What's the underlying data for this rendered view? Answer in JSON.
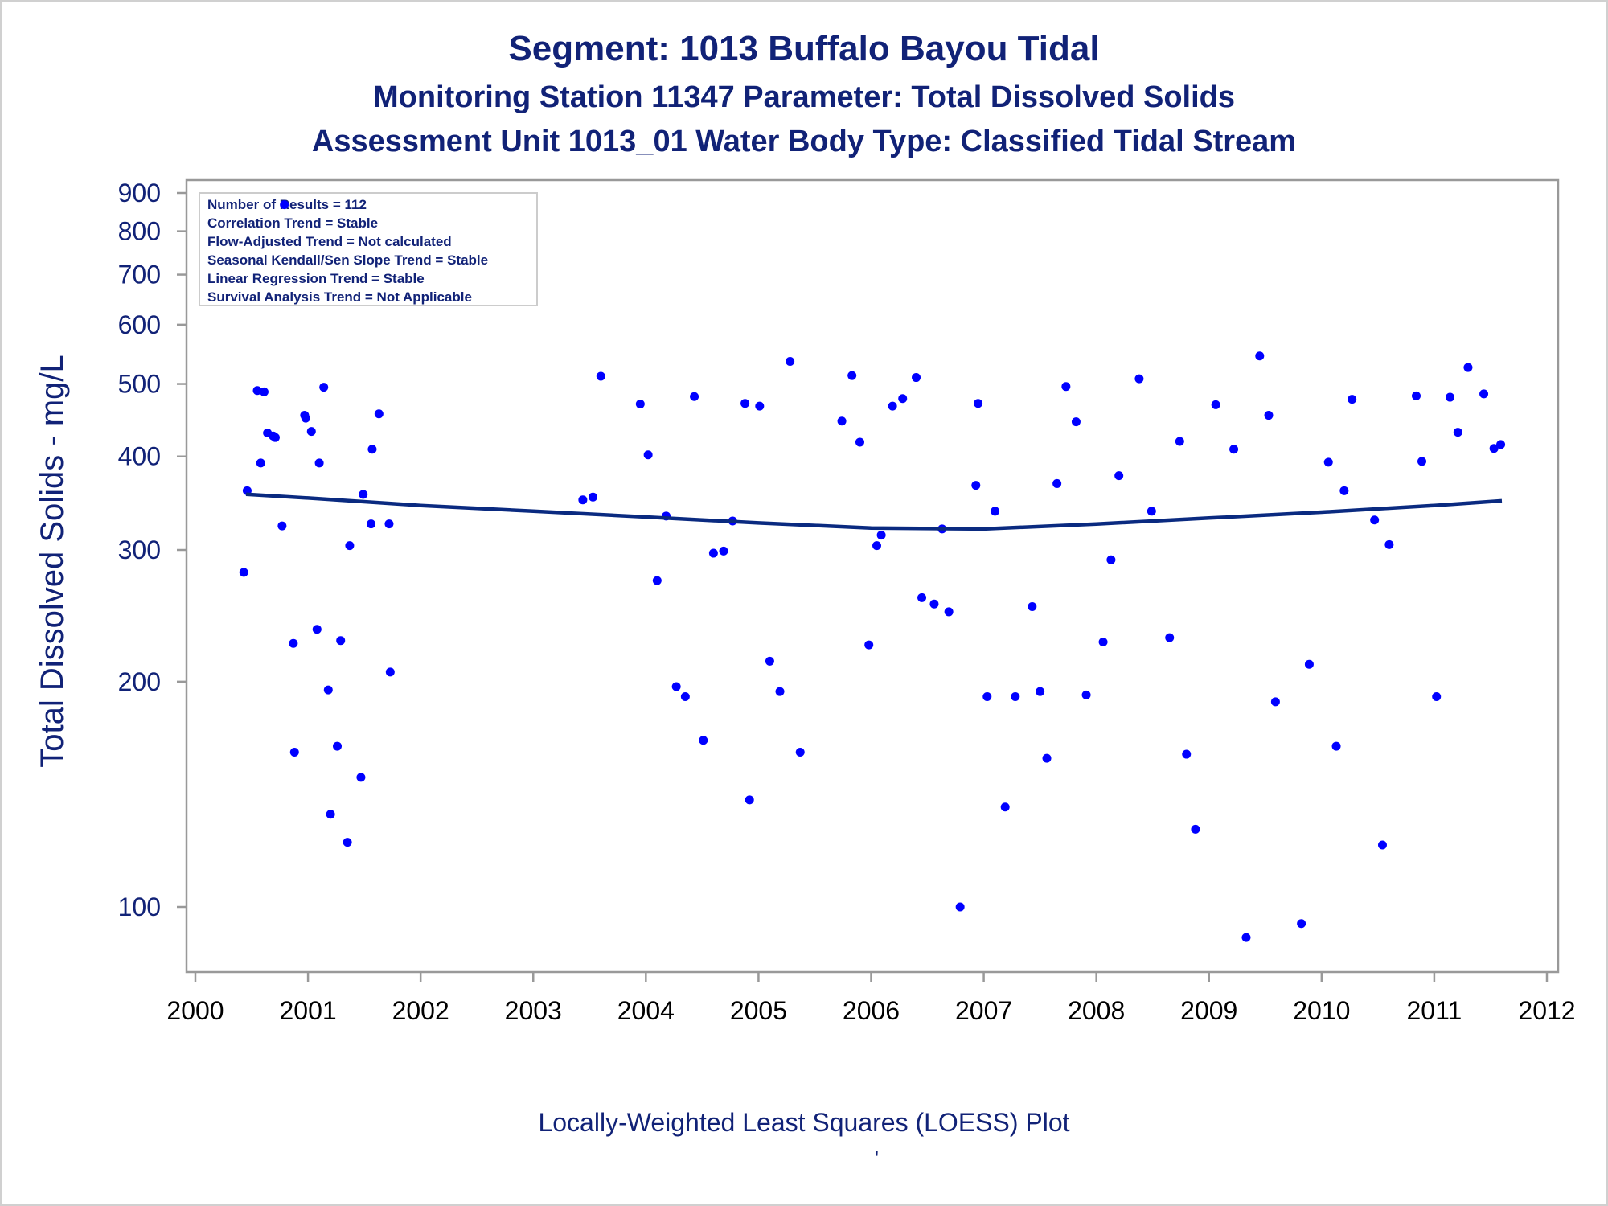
{
  "titles": {
    "line1": "Segment: 1013  Buffalo Bayou Tidal",
    "line2": "Monitoring Station 11347 Parameter: Total Dissolved Solids",
    "line3": "Assessment Unit 1013_01   Water Body Type: Classified Tidal Stream"
  },
  "footnote": "Locally-Weighted Least Squares (LOESS) Plot",
  "footnote_mark": "'",
  "colors": {
    "text": "#112277",
    "points": "#0000ff",
    "loess": "#0a2a80",
    "frame": "#999999"
  },
  "chart_data": {
    "type": "scatter",
    "ylabel": "Total Dissolved Solids - mg/L",
    "xlabel": "",
    "yscale": "log",
    "ylim": [
      80,
      900
    ],
    "xlim": [
      2000,
      2012
    ],
    "yticks": [
      100,
      200,
      300,
      400,
      500,
      600,
      700,
      800,
      900
    ],
    "xticks": [
      2000,
      2001,
      2002,
      2003,
      2004,
      2005,
      2006,
      2007,
      2008,
      2009,
      2010,
      2011,
      2012
    ],
    "stats_box": [
      "Number of Results = 112",
      "Correlation Trend = Stable",
      "Flow-Adjusted Trend = Not calculated",
      "Seasonal Kendall/Sen Slope Trend = Stable",
      "Linear Regression Trend = Stable",
      "Survival Analysis Trend = Not Applicable"
    ],
    "series": [
      {
        "kind": "points",
        "points": [
          [
            2000.43,
            280
          ],
          [
            2000.46,
            360
          ],
          [
            2000.55,
            490
          ],
          [
            2000.58,
            392
          ],
          [
            2000.61,
            488
          ],
          [
            2000.64,
            430
          ],
          [
            2000.69,
            426
          ],
          [
            2000.71,
            424
          ],
          [
            2000.77,
            323
          ],
          [
            2000.79,
            868
          ],
          [
            2000.87,
            225
          ],
          [
            2000.88,
            161
          ],
          [
            2000.97,
            454
          ],
          [
            2000.98,
            450
          ],
          [
            2001.03,
            432
          ],
          [
            2001.08,
            235
          ],
          [
            2001.1,
            392
          ],
          [
            2001.14,
            495
          ],
          [
            2001.18,
            195
          ],
          [
            2001.2,
            133
          ],
          [
            2001.26,
            164
          ],
          [
            2001.29,
            227
          ],
          [
            2001.35,
            122
          ],
          [
            2001.37,
            304
          ],
          [
            2001.47,
            149
          ],
          [
            2001.49,
            356
          ],
          [
            2001.56,
            325
          ],
          [
            2001.57,
            409
          ],
          [
            2001.63,
            456
          ],
          [
            2001.72,
            325
          ],
          [
            2001.73,
            206
          ],
          [
            2003.44,
            350
          ],
          [
            2003.53,
            353
          ],
          [
            2003.6,
            512
          ],
          [
            2003.95,
            470
          ],
          [
            2004.02,
            402
          ],
          [
            2004.1,
            273
          ],
          [
            2004.18,
            333
          ],
          [
            2004.27,
            197
          ],
          [
            2004.35,
            191
          ],
          [
            2004.43,
            481
          ],
          [
            2004.51,
            167
          ],
          [
            2004.6,
            297
          ],
          [
            2004.69,
            299
          ],
          [
            2004.77,
            328
          ],
          [
            2004.88,
            471
          ],
          [
            2004.92,
            139
          ],
          [
            2005.01,
            467
          ],
          [
            2005.1,
            213
          ],
          [
            2005.19,
            194
          ],
          [
            2005.28,
            536
          ],
          [
            2005.37,
            161
          ],
          [
            2005.74,
            446
          ],
          [
            2005.83,
            513
          ],
          [
            2005.9,
            418
          ],
          [
            2005.98,
            224
          ],
          [
            2006.05,
            304
          ],
          [
            2006.09,
            314
          ],
          [
            2006.19,
            467
          ],
          [
            2006.28,
            478
          ],
          [
            2006.4,
            510
          ],
          [
            2006.45,
            259
          ],
          [
            2006.56,
            254
          ],
          [
            2006.63,
            320
          ],
          [
            2006.69,
            248
          ],
          [
            2006.79,
            100
          ],
          [
            2006.93,
            366
          ],
          [
            2006.95,
            471
          ],
          [
            2007.03,
            191
          ],
          [
            2007.1,
            338
          ],
          [
            2007.19,
            136
          ],
          [
            2007.28,
            191
          ],
          [
            2007.43,
            252
          ],
          [
            2007.5,
            194
          ],
          [
            2007.56,
            158
          ],
          [
            2007.65,
            368
          ],
          [
            2007.73,
            496
          ],
          [
            2007.82,
            445
          ],
          [
            2007.91,
            192
          ],
          [
            2008.06,
            226
          ],
          [
            2008.13,
            291
          ],
          [
            2008.2,
            377
          ],
          [
            2008.38,
            508
          ],
          [
            2008.49,
            338
          ],
          [
            2008.65,
            229
          ],
          [
            2008.74,
            419
          ],
          [
            2008.8,
            160
          ],
          [
            2008.88,
            127
          ],
          [
            2009.06,
            469
          ],
          [
            2009.22,
            409
          ],
          [
            2009.33,
            91
          ],
          [
            2009.45,
            545
          ],
          [
            2009.53,
            454
          ],
          [
            2009.59,
            188
          ],
          [
            2009.82,
            95
          ],
          [
            2009.89,
            211
          ],
          [
            2010.06,
            393
          ],
          [
            2010.13,
            164
          ],
          [
            2010.2,
            360
          ],
          [
            2010.27,
            477
          ],
          [
            2010.47,
            329
          ],
          [
            2010.54,
            121
          ],
          [
            2010.6,
            305
          ],
          [
            2010.84,
            482
          ],
          [
            2010.89,
            394
          ],
          [
            2011.02,
            191
          ],
          [
            2011.14,
            480
          ],
          [
            2011.21,
            431
          ],
          [
            2011.3,
            526
          ],
          [
            2011.44,
            485
          ],
          [
            2011.53,
            410
          ],
          [
            2011.59,
            415
          ]
        ]
      },
      {
        "kind": "line",
        "points": [
          [
            2000.45,
            356
          ],
          [
            2001.0,
            352
          ],
          [
            2002.0,
            344
          ],
          [
            2003.0,
            338
          ],
          [
            2004.0,
            332
          ],
          [
            2005.0,
            326
          ],
          [
            2006.0,
            321
          ],
          [
            2007.0,
            320
          ],
          [
            2008.0,
            325
          ],
          [
            2009.0,
            331
          ],
          [
            2010.0,
            337
          ],
          [
            2011.0,
            344
          ],
          [
            2011.6,
            349
          ]
        ]
      }
    ]
  }
}
